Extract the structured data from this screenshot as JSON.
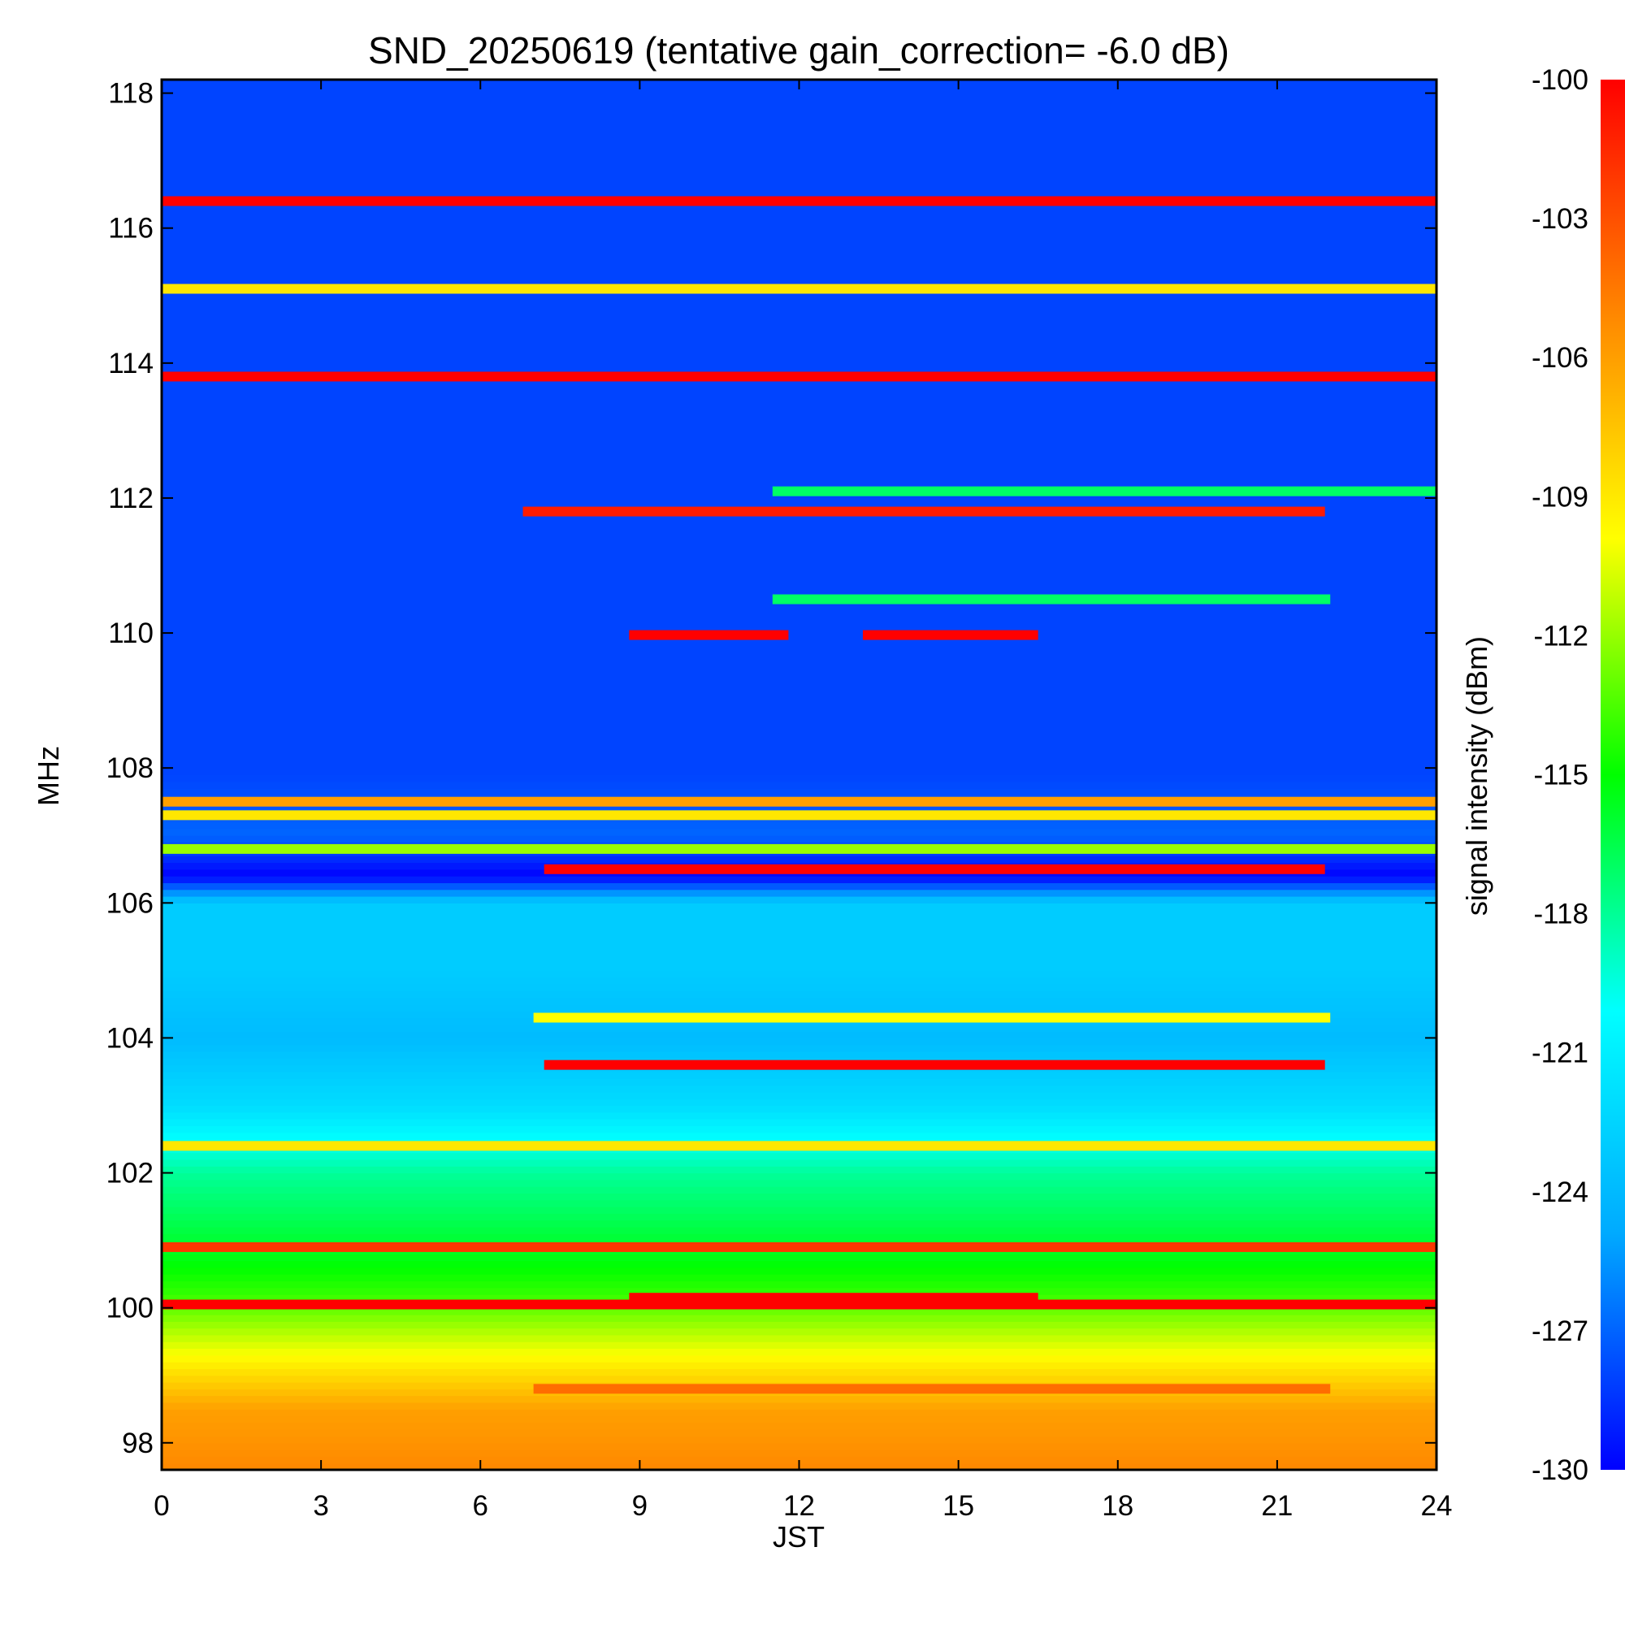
{
  "chart_data": {
    "type": "heatmap",
    "title": "SND_20250619 (tentative gain_correction= -6.0 dB)",
    "xlabel": "JST",
    "ylabel": "MHz",
    "colorbar_label": "signal intensity (dBm)",
    "xlim": [
      0,
      24
    ],
    "ylim": [
      97.6,
      118.2
    ],
    "clim": [
      -130,
      -100
    ],
    "x_ticks": [
      0,
      3,
      6,
      9,
      12,
      15,
      18,
      21,
      24
    ],
    "y_ticks": [
      98,
      100,
      102,
      104,
      106,
      108,
      110,
      112,
      114,
      116,
      118
    ],
    "colorbar_ticks": [
      -100,
      -103,
      -106,
      -109,
      -112,
      -115,
      -118,
      -121,
      -124,
      -127,
      -130
    ],
    "colormap": [
      "#0000ff",
      "#00aaff",
      "#00ffff",
      "#00ff00",
      "#ffff00",
      "#ff8800",
      "#ff0000"
    ],
    "background_profile": [
      {
        "freq": 97.6,
        "dbm": -105
      },
      {
        "freq": 98.5,
        "dbm": -106
      },
      {
        "freq": 99.3,
        "dbm": -110
      },
      {
        "freq": 100.2,
        "dbm": -114
      },
      {
        "freq": 101.0,
        "dbm": -116
      },
      {
        "freq": 102.0,
        "dbm": -118
      },
      {
        "freq": 103.0,
        "dbm": -122
      },
      {
        "freq": 104.0,
        "dbm": -124
      },
      {
        "freq": 105.0,
        "dbm": -123
      },
      {
        "freq": 106.0,
        "dbm": -123
      },
      {
        "freq": 106.4,
        "dbm": -130
      },
      {
        "freq": 107.0,
        "dbm": -127
      },
      {
        "freq": 107.9,
        "dbm": -128
      },
      {
        "freq": 118.2,
        "dbm": -128
      }
    ],
    "bands": [
      {
        "freq": 116.4,
        "t_start": 0,
        "t_end": 24,
        "dbm": -100
      },
      {
        "freq": 115.1,
        "t_start": 0,
        "t_end": 24,
        "dbm": -109
      },
      {
        "freq": 113.8,
        "t_start": 0,
        "t_end": 24,
        "dbm": -100
      },
      {
        "freq": 111.8,
        "t_start": 6.8,
        "t_end": 21.9,
        "dbm": -101
      },
      {
        "freq": 112.1,
        "t_start": 11.5,
        "t_end": 24,
        "dbm": -117
      },
      {
        "freq": 110.5,
        "t_start": 11.5,
        "t_end": 22,
        "dbm": -117
      },
      {
        "freq": 109.97,
        "t_start": 8.8,
        "t_end": 11.8,
        "dbm": -100
      },
      {
        "freq": 109.97,
        "t_start": 13.2,
        "t_end": 16.5,
        "dbm": -100
      },
      {
        "freq": 107.5,
        "t_start": 0,
        "t_end": 24,
        "dbm": -106
      },
      {
        "freq": 107.3,
        "t_start": 0,
        "t_end": 24,
        "dbm": -109
      },
      {
        "freq": 106.8,
        "t_start": 0,
        "t_end": 24,
        "dbm": -112
      },
      {
        "freq": 106.5,
        "t_start": 7.2,
        "t_end": 21.9,
        "dbm": -100
      },
      {
        "freq": 103.6,
        "t_start": 7.2,
        "t_end": 21.9,
        "dbm": -100
      },
      {
        "freq": 104.3,
        "t_start": 7,
        "t_end": 22,
        "dbm": -110
      },
      {
        "freq": 102.4,
        "t_start": 0,
        "t_end": 24,
        "dbm": -109
      },
      {
        "freq": 100.9,
        "t_start": 0,
        "t_end": 24,
        "dbm": -102
      },
      {
        "freq": 100.05,
        "t_start": 0,
        "t_end": 24,
        "dbm": -100
      },
      {
        "freq": 100.15,
        "t_start": 8.8,
        "t_end": 16.5,
        "dbm": -100
      },
      {
        "freq": 98.8,
        "t_start": 7,
        "t_end": 22,
        "dbm": -104
      }
    ]
  }
}
